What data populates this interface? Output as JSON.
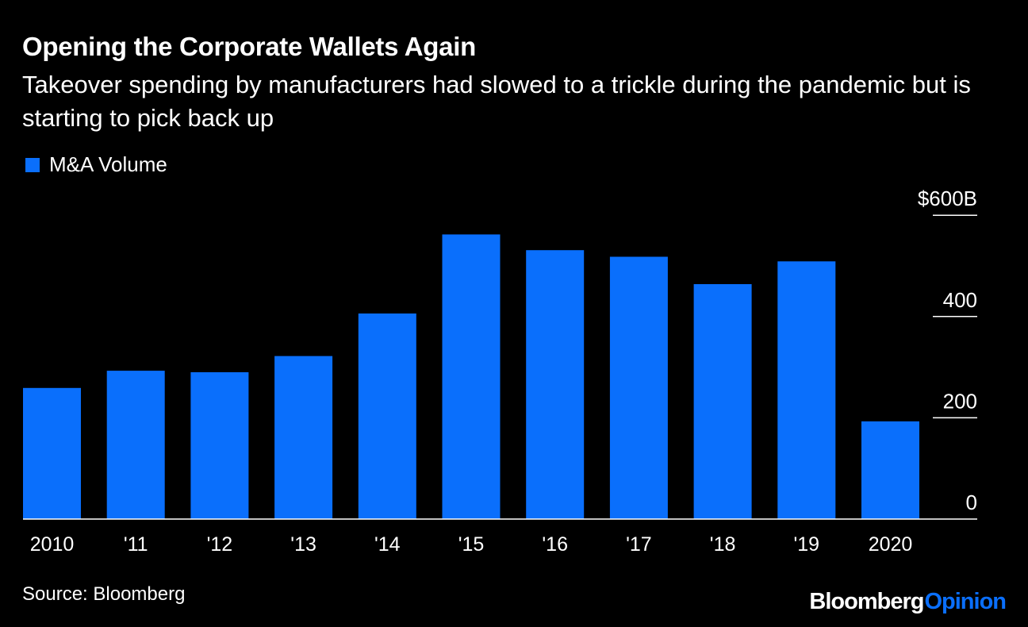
{
  "header": {
    "title": "Opening the Corporate Wallets Again",
    "subtitle": "Takeover spending by manufacturers had slowed to a trickle during the pandemic but is starting to pick back up"
  },
  "footer": {
    "source": "Source: Bloomberg",
    "brand_part_1": "Bloomberg",
    "brand_part_2": "Opinion"
  },
  "colors": {
    "background": "#000000",
    "bar": "#0a6ffc",
    "text": "#ffffff",
    "brand_primary": "#ffffff",
    "brand_accent": "#0a6ffc"
  },
  "chart_data": {
    "type": "bar",
    "categories": [
      "2010",
      "'11",
      "'12",
      "'13",
      "'14",
      "'15",
      "'16",
      "'17",
      "'18",
      "'19",
      "2020"
    ],
    "series": [
      {
        "name": "M&A Volume",
        "values": [
          259,
          293,
          290,
          322,
          406,
          562,
          531,
          518,
          464,
          509,
          193
        ]
      }
    ],
    "y_ticks": [
      {
        "value": 0,
        "label": "0"
      },
      {
        "value": 200,
        "label": "200"
      },
      {
        "value": 400,
        "label": "400"
      },
      {
        "value": 600,
        "label": "$600B"
      }
    ],
    "ylim": [
      0,
      600
    ],
    "grid": false,
    "legend_position": "top-left",
    "y_axis_position": "right"
  }
}
